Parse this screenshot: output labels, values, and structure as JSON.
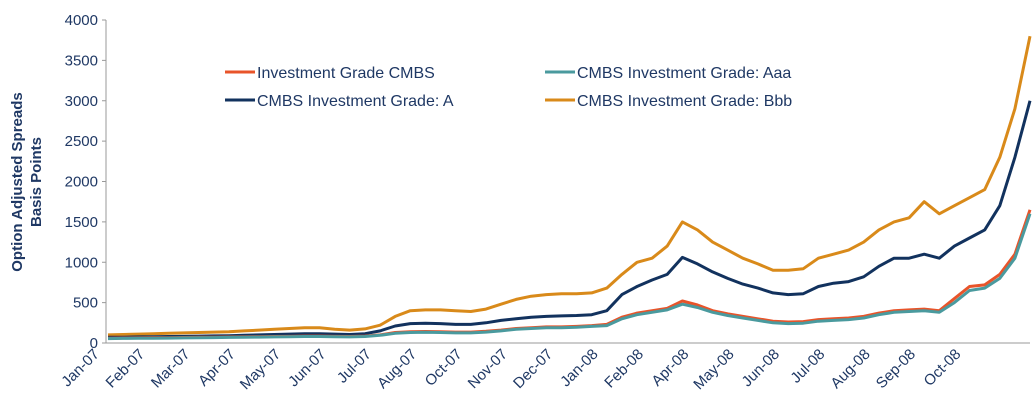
{
  "chart_data": {
    "type": "line",
    "ylabel": [
      "Option Adjusted Spreads",
      "Basis Points"
    ],
    "categories": [
      "Jan-07",
      null,
      null,
      "Feb-07",
      null,
      null,
      "Mar-07",
      null,
      null,
      "Apr-07",
      null,
      null,
      "May-07",
      null,
      null,
      "Jun-07",
      null,
      null,
      "Jul-07",
      null,
      null,
      "Aug-07",
      null,
      null,
      "Oct-07",
      null,
      null,
      "Nov-07",
      null,
      null,
      "Dec-07",
      null,
      null,
      "Jan-08",
      null,
      null,
      "Feb-08",
      null,
      null,
      "Apr-08",
      null,
      null,
      "May-08",
      null,
      null,
      "Jun-08",
      null,
      null,
      "Jul-08",
      null,
      null,
      "Aug-08",
      null,
      null,
      "Sep-08",
      null,
      null,
      "Oct-08",
      null,
      null,
      null,
      null
    ],
    "series": [
      {
        "name": "Investment Grade CMBS",
        "color": "#e8542a",
        "values": [
          60,
          62,
          63,
          65,
          66,
          68,
          70,
          72,
          74,
          76,
          78,
          80,
          82,
          85,
          85,
          82,
          80,
          85,
          100,
          130,
          140,
          142,
          140,
          135,
          135,
          145,
          160,
          180,
          190,
          200,
          200,
          205,
          215,
          230,
          320,
          370,
          400,
          430,
          520,
          470,
          400,
          360,
          330,
          300,
          270,
          260,
          265,
          290,
          300,
          310,
          330,
          370,
          400,
          410,
          420,
          400,
          550,
          700,
          720,
          850,
          1100,
          1650
        ]
      },
      {
        "name": "CMBS Investment Grade: Aaa",
        "color": "#4a9a9e",
        "values": [
          55,
          57,
          58,
          60,
          61,
          63,
          65,
          67,
          69,
          71,
          73,
          75,
          77,
          80,
          80,
          77,
          75,
          80,
          95,
          120,
          130,
          132,
          130,
          125,
          125,
          135,
          150,
          170,
          180,
          190,
          190,
          195,
          205,
          215,
          300,
          350,
          380,
          410,
          480,
          440,
          380,
          340,
          310,
          280,
          250,
          240,
          245,
          270,
          280,
          290,
          310,
          350,
          380,
          390,
          400,
          380,
          500,
          650,
          680,
          800,
          1050,
          1600
        ]
      },
      {
        "name": "CMBS Investment Grade: A",
        "color": "#12325e",
        "values": [
          70,
          72,
          75,
          78,
          80,
          82,
          85,
          88,
          90,
          95,
          100,
          105,
          110,
          115,
          115,
          110,
          105,
          115,
          150,
          210,
          240,
          245,
          240,
          230,
          230,
          250,
          280,
          300,
          320,
          330,
          335,
          340,
          350,
          400,
          600,
          700,
          780,
          850,
          1060,
          980,
          880,
          800,
          730,
          680,
          620,
          600,
          610,
          700,
          740,
          760,
          820,
          950,
          1050,
          1050,
          1100,
          1050,
          1200,
          1300,
          1400,
          1700,
          2300,
          3000
        ]
      },
      {
        "name": "CMBS Investment Grade: Bbb",
        "color": "#d98a1a",
        "values": [
          100,
          105,
          110,
          115,
          120,
          125,
          130,
          135,
          140,
          150,
          160,
          170,
          180,
          190,
          190,
          170,
          160,
          175,
          220,
          330,
          400,
          410,
          410,
          400,
          390,
          420,
          480,
          540,
          580,
          600,
          610,
          610,
          620,
          680,
          850,
          1000,
          1050,
          1200,
          1500,
          1400,
          1250,
          1150,
          1050,
          980,
          900,
          900,
          920,
          1050,
          1100,
          1150,
          1250,
          1400,
          1500,
          1550,
          1750,
          1600,
          1700,
          1800,
          1900,
          2300,
          2900,
          3800
        ]
      }
    ],
    "ylim": [
      0,
      4000
    ],
    "yticks": [
      0,
      500,
      1000,
      1500,
      2000,
      2500,
      3000,
      3500,
      4000
    ],
    "grid": false
  }
}
